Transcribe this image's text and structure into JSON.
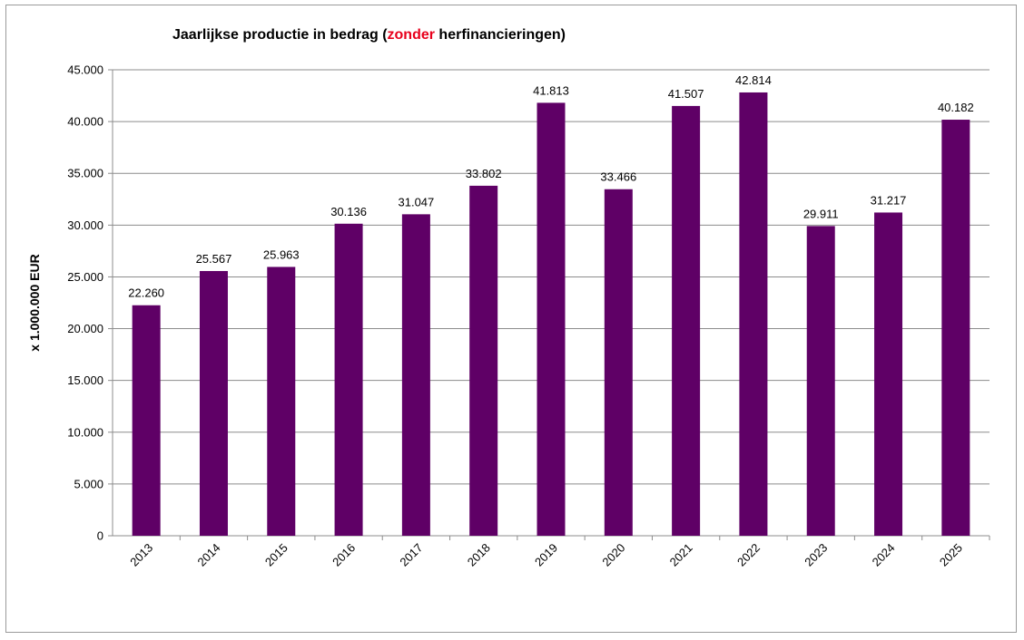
{
  "chart_data": {
    "type": "bar",
    "title_parts": [
      "Jaarlijkse productie in bedrag (",
      "zonder",
      " herfinancieringen)"
    ],
    "highlight_color": "#e8001c",
    "bar_color": "#5f0066",
    "ylabel": "x 1.000.000 EUR",
    "xlabel": "",
    "ylim": [
      0,
      45000
    ],
    "ytick_step": 5000,
    "ytick_labels": [
      "0",
      "5.000",
      "10.000",
      "15.000",
      "20.000",
      "25.000",
      "30.000",
      "35.000",
      "40.000",
      "45.000"
    ],
    "grid": true,
    "categories": [
      "2013",
      "2014",
      "2015",
      "2016",
      "2017",
      "2018",
      "2019",
      "2020",
      "2021",
      "2022",
      "2023",
      "2024",
      "2025"
    ],
    "values": [
      22260,
      25567,
      25963,
      30136,
      31047,
      33802,
      41813,
      33466,
      41507,
      42814,
      29911,
      31217,
      40182
    ],
    "value_labels": [
      "22.260",
      "25.567",
      "25.963",
      "30.136",
      "31.047",
      "33.802",
      "41.813",
      "33.466",
      "41.507",
      "42.814",
      "29.911",
      "31.217",
      "40.182"
    ]
  }
}
